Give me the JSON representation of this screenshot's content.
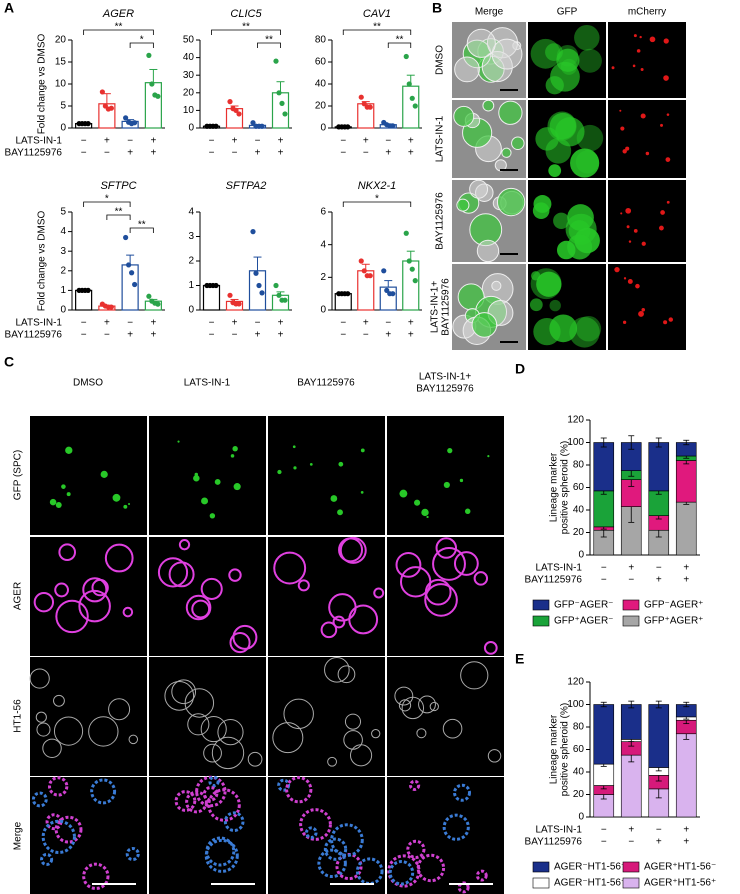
{
  "panel_labels": [
    "A",
    "B",
    "C",
    "D",
    "E"
  ],
  "conditions": [
    {
      "name": "LATS-IN-1",
      "signs": [
        "−",
        "+",
        "−",
        "+"
      ]
    },
    {
      "name": "BAY1125976",
      "signs": [
        "−",
        "−",
        "+",
        "+"
      ]
    }
  ],
  "panel_b": {
    "columns": [
      "Merge",
      "GFP",
      "mCherry"
    ],
    "rows": [
      [
        "DMSO"
      ],
      [
        "LATS-IN-1"
      ],
      [
        "BAY1125976"
      ],
      [
        "LATS-IN-1+",
        "BAY1125976"
      ]
    ]
  },
  "panel_c": {
    "columns": [
      [
        "DMSO"
      ],
      [
        "LATS-IN-1"
      ],
      [
        "BAY1125976"
      ],
      [
        "LATS-IN-1+",
        "BAY1125976"
      ]
    ],
    "rows": [
      "GFP (SPC)",
      "AGER",
      "HT1-56",
      "Merge"
    ]
  },
  "chart_data": [
    {
      "type": "dot_bar",
      "title": "AGER",
      "ylabel": "Fold change vs DMSO",
      "categories": [
        null,
        null,
        null,
        null
      ],
      "colors": [
        "#000000",
        "#e8312f",
        "#1f4e9c",
        "#2aa44a"
      ],
      "values": [
        1,
        5.5,
        1.5,
        10.3
      ],
      "errors": [
        0.1,
        2.3,
        0.4,
        3
      ],
      "points": [
        [
          1,
          1,
          1,
          1
        ],
        [
          8.2,
          5,
          4.3,
          4.5
        ],
        [
          2.3,
          1.3,
          1,
          1.2
        ],
        [
          16.5,
          10,
          7.5,
          7.2
        ]
      ],
      "ylim": [
        0,
        20
      ],
      "yticks": [
        0,
        5,
        10,
        15,
        20
      ],
      "significance": [
        {
          "between": [
            0,
            3
          ],
          "label": "**"
        },
        {
          "between": [
            2,
            3
          ],
          "label": "*"
        }
      ]
    },
    {
      "type": "dot_bar",
      "title": "CLIC5",
      "categories": [
        null,
        null,
        null,
        null
      ],
      "colors": [
        "#000000",
        "#e8312f",
        "#1f4e9c",
        "#2aa44a"
      ],
      "values": [
        1,
        11,
        1.5,
        20
      ],
      "errors": [
        0.1,
        1.5,
        0.5,
        6.3
      ],
      "points": [
        [
          1,
          1,
          1,
          1
        ],
        [
          15,
          11,
          10,
          8
        ],
        [
          3,
          1,
          1,
          1
        ],
        [
          38,
          20,
          14,
          8
        ]
      ],
      "ylim": [
        0,
        50
      ],
      "yticks": [
        0,
        10,
        20,
        30,
        40,
        50
      ],
      "significance": [
        {
          "between": [
            0,
            3
          ],
          "label": "**"
        },
        {
          "between": [
            2,
            3
          ],
          "label": "**"
        }
      ]
    },
    {
      "type": "dot_bar",
      "title": "CAV1",
      "categories": [
        null,
        null,
        null,
        null
      ],
      "colors": [
        "#000000",
        "#e8312f",
        "#1f4e9c",
        "#2aa44a"
      ],
      "values": [
        1,
        22,
        3,
        38
      ],
      "errors": [
        0.2,
        2,
        0.7,
        10
      ],
      "points": [
        [
          1,
          1,
          1,
          1
        ],
        [
          28,
          22,
          19,
          19
        ],
        [
          5,
          3,
          2,
          2
        ],
        [
          65,
          40,
          27,
          20
        ]
      ],
      "ylim": [
        0,
        80
      ],
      "yticks": [
        0,
        20,
        40,
        60,
        80
      ],
      "significance": [
        {
          "between": [
            0,
            3
          ],
          "label": "**"
        },
        {
          "between": [
            2,
            3
          ],
          "label": "**"
        }
      ]
    },
    {
      "type": "dot_bar",
      "title": "SFTPC",
      "ylabel": "Fold change vs DMSO",
      "categories": [
        null,
        null,
        null,
        null
      ],
      "colors": [
        "#000000",
        "#e8312f",
        "#1f4e9c",
        "#2aa44a"
      ],
      "values": [
        1,
        0.2,
        2.3,
        0.45
      ],
      "errors": [
        0.03,
        0.04,
        0.5,
        0.09
      ],
      "points": [
        [
          1,
          1,
          1,
          1
        ],
        [
          0.3,
          0.2,
          0.15,
          0.15
        ],
        [
          3.7,
          2.3,
          1.9,
          1.3
        ],
        [
          0.7,
          0.45,
          0.35,
          0.3
        ]
      ],
      "ylim": [
        0,
        5
      ],
      "yticks": [
        0,
        1,
        2,
        3,
        4,
        5
      ],
      "significance": [
        {
          "between": [
            0,
            2
          ],
          "label": "*"
        },
        {
          "between": [
            1,
            2
          ],
          "label": "**"
        },
        {
          "between": [
            2,
            3
          ],
          "label": "**"
        }
      ]
    },
    {
      "type": "dot_bar",
      "title": "SFTPA2",
      "categories": [
        null,
        null,
        null,
        null
      ],
      "colors": [
        "#000000",
        "#e8312f",
        "#1f4e9c",
        "#2aa44a"
      ],
      "values": [
        1,
        0.35,
        1.6,
        0.6
      ],
      "errors": [
        0.02,
        0.08,
        0.56,
        0.14
      ],
      "points": [
        [
          1,
          1,
          1,
          1
        ],
        [
          0.6,
          0.3,
          0.25,
          0.25
        ],
        [
          3.2,
          1.5,
          1,
          0.7
        ],
        [
          1,
          0.6,
          0.4,
          0.4
        ]
      ],
      "ylim": [
        0,
        4
      ],
      "yticks": [
        0,
        1,
        2,
        3,
        4
      ],
      "significance": []
    },
    {
      "type": "dot_bar",
      "title": "NKX2-1",
      "categories": [
        null,
        null,
        null,
        null
      ],
      "colors": [
        "#000000",
        "#e8312f",
        "#1f4e9c",
        "#2aa44a"
      ],
      "values": [
        1,
        2.4,
        1.4,
        3
      ],
      "errors": [
        0.02,
        0.4,
        0.4,
        0.6
      ],
      "points": [
        [
          1,
          1,
          1,
          1
        ],
        [
          3,
          2.4,
          2.1,
          2.1
        ],
        [
          2.4,
          1.2,
          1,
          1
        ],
        [
          4.7,
          3,
          2.5,
          1.8
        ]
      ],
      "ylim": [
        0,
        6
      ],
      "yticks": [
        0,
        2,
        4,
        6
      ],
      "significance": [
        {
          "between": [
            0,
            3
          ],
          "label": "*"
        }
      ]
    },
    {
      "type": "stacked_bar",
      "ylabel": [
        "Lineage marker",
        "positive spheroid (%)"
      ],
      "categories": [
        null,
        null,
        null,
        null
      ],
      "ylim": [
        0,
        120
      ],
      "yticks": [
        0,
        20,
        40,
        60,
        80,
        100,
        120
      ],
      "series": [
        {
          "name": "GFP⁺AGER⁺",
          "color": "#a6a6a6",
          "values": [
            22,
            43,
            22,
            47
          ],
          "errors": [
            6,
            14,
            6,
            2
          ]
        },
        {
          "name": "GFP⁻AGER⁺",
          "color": "#e0197d",
          "values": [
            3,
            24,
            13,
            37
          ],
          "errors": [
            2,
            6,
            3,
            3
          ]
        },
        {
          "name": "GFP⁺AGER⁻",
          "color": "#1aa339",
          "values": [
            32,
            8,
            22,
            4
          ],
          "errors": [
            3,
            5,
            3,
            2
          ]
        },
        {
          "name": "GFP⁻AGER⁻",
          "color": "#1a2f8a",
          "values": [
            43,
            25,
            43,
            12
          ],
          "errors": [
            4,
            6,
            4,
            2
          ]
        }
      ],
      "legend_order": [
        3,
        1,
        2,
        0
      ]
    },
    {
      "type": "stacked_bar",
      "ylabel": [
        "Lineage marker",
        "positive spheroid (%)"
      ],
      "categories": [
        null,
        null,
        null,
        null
      ],
      "ylim": [
        0,
        120
      ],
      "yticks": [
        0,
        20,
        40,
        60,
        80,
        100,
        120
      ],
      "series": [
        {
          "name": "AGER⁺HT1-56⁺",
          "color": "#d9b3ee",
          "values": [
            20,
            55,
            25,
            74
          ],
          "errors": [
            4,
            6,
            8,
            5
          ]
        },
        {
          "name": "AGER⁺HT1-56⁻",
          "color": "#d6197a",
          "values": [
            8,
            12,
            12,
            12
          ],
          "errors": [
            3,
            4,
            5,
            3
          ]
        },
        {
          "name": "AGER⁻HT1-56⁺",
          "color": "#ffffff",
          "values": [
            19,
            2,
            7,
            3
          ],
          "errors": [
            2,
            2,
            3,
            2
          ]
        },
        {
          "name": "AGER⁻HT1-56⁻",
          "color": "#1a2f8a",
          "values": [
            53,
            31,
            56,
            11
          ],
          "errors": [
            2,
            3,
            3,
            2
          ]
        }
      ],
      "legend_order": [
        3,
        1,
        2,
        0
      ]
    }
  ]
}
